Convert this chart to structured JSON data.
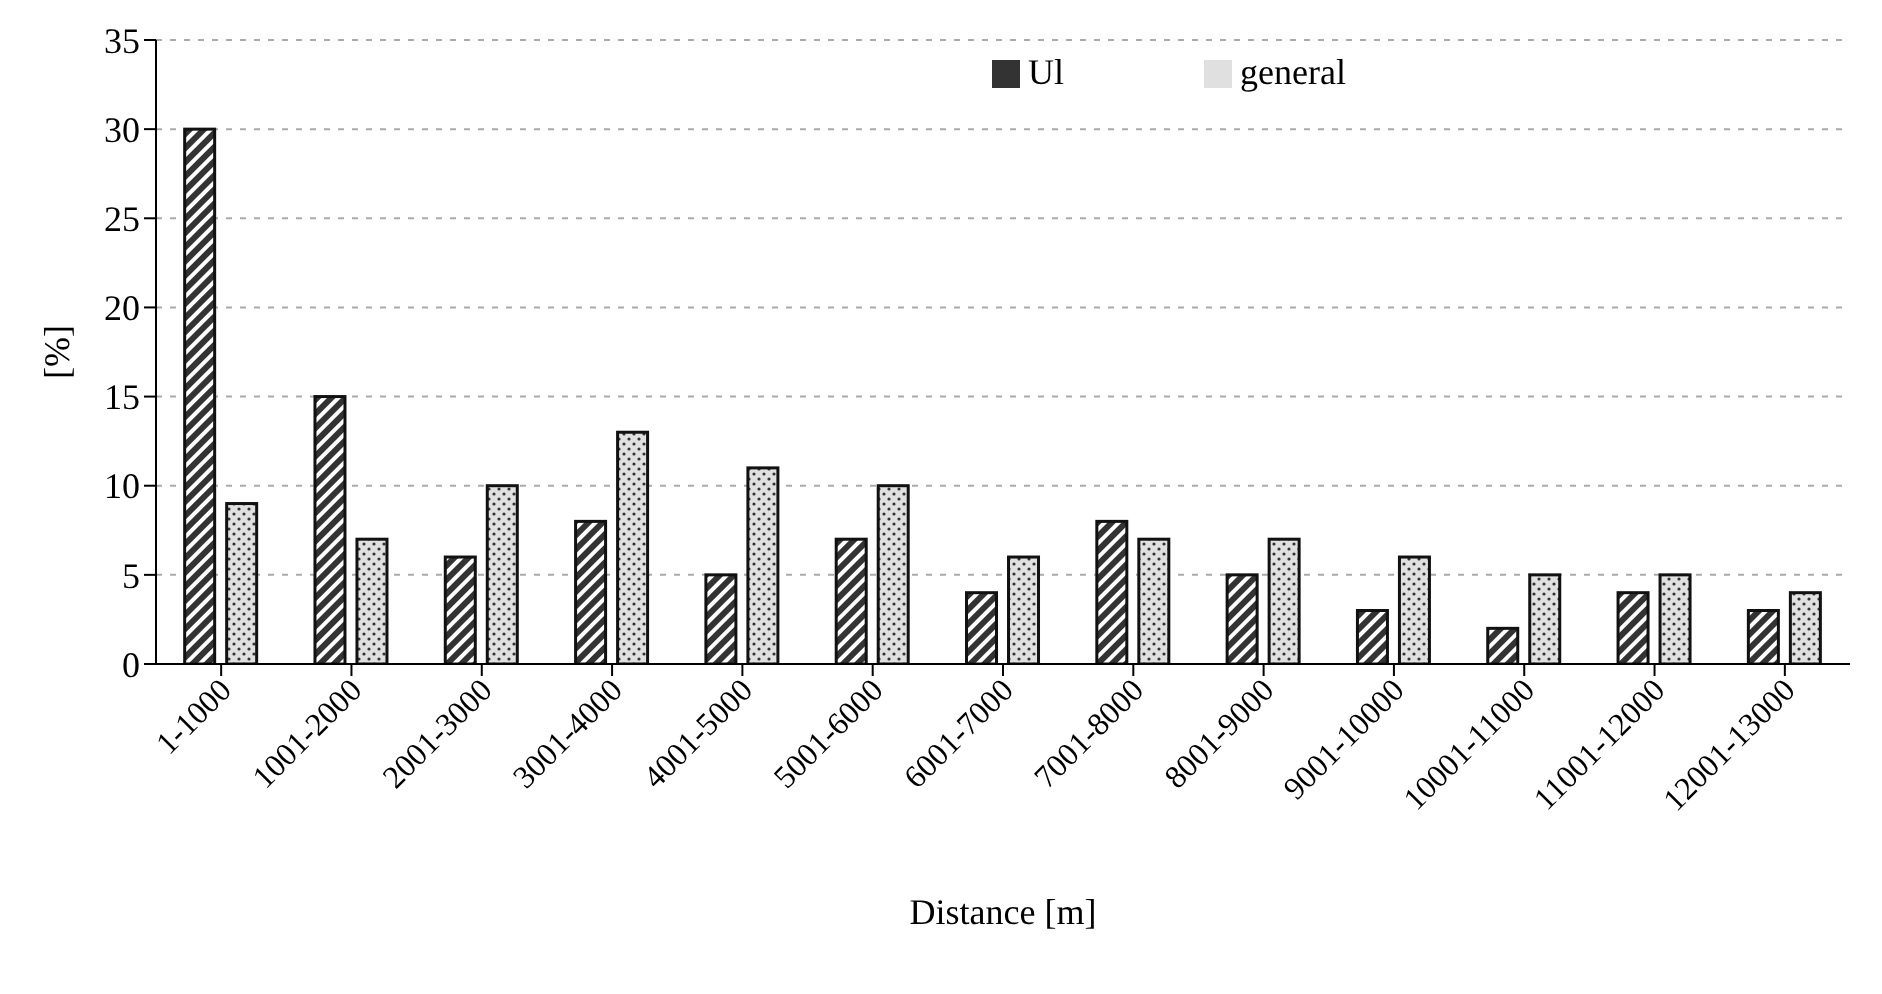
{
  "chart_data": {
    "type": "bar",
    "xlabel": "Distance [m]",
    "ylabel": "[%]",
    "categories": [
      "1-1000",
      "1001-2000",
      "2001-3000",
      "3001-4000",
      "4001-5000",
      "5001-6000",
      "6001-7000",
      "7001-8000",
      "8001-9000",
      "9001-10000",
      "10001-11000",
      "11001-12000",
      "12001-13000"
    ],
    "series": [
      {
        "name": "Ul",
        "color": "#333333",
        "values": [
          30,
          15,
          6,
          8,
          5,
          7,
          4,
          8,
          5,
          3,
          2,
          4,
          3
        ]
      },
      {
        "name": "general",
        "color": "#e0e0e0",
        "values": [
          9,
          7,
          10,
          13,
          11,
          10,
          6,
          7,
          7,
          6,
          5,
          5,
          4
        ]
      }
    ],
    "ylim": [
      0,
      35
    ],
    "yticks": [
      0,
      5,
      10,
      15,
      20,
      25,
      30,
      35
    ],
    "grid": "y",
    "legend": "top right"
  }
}
